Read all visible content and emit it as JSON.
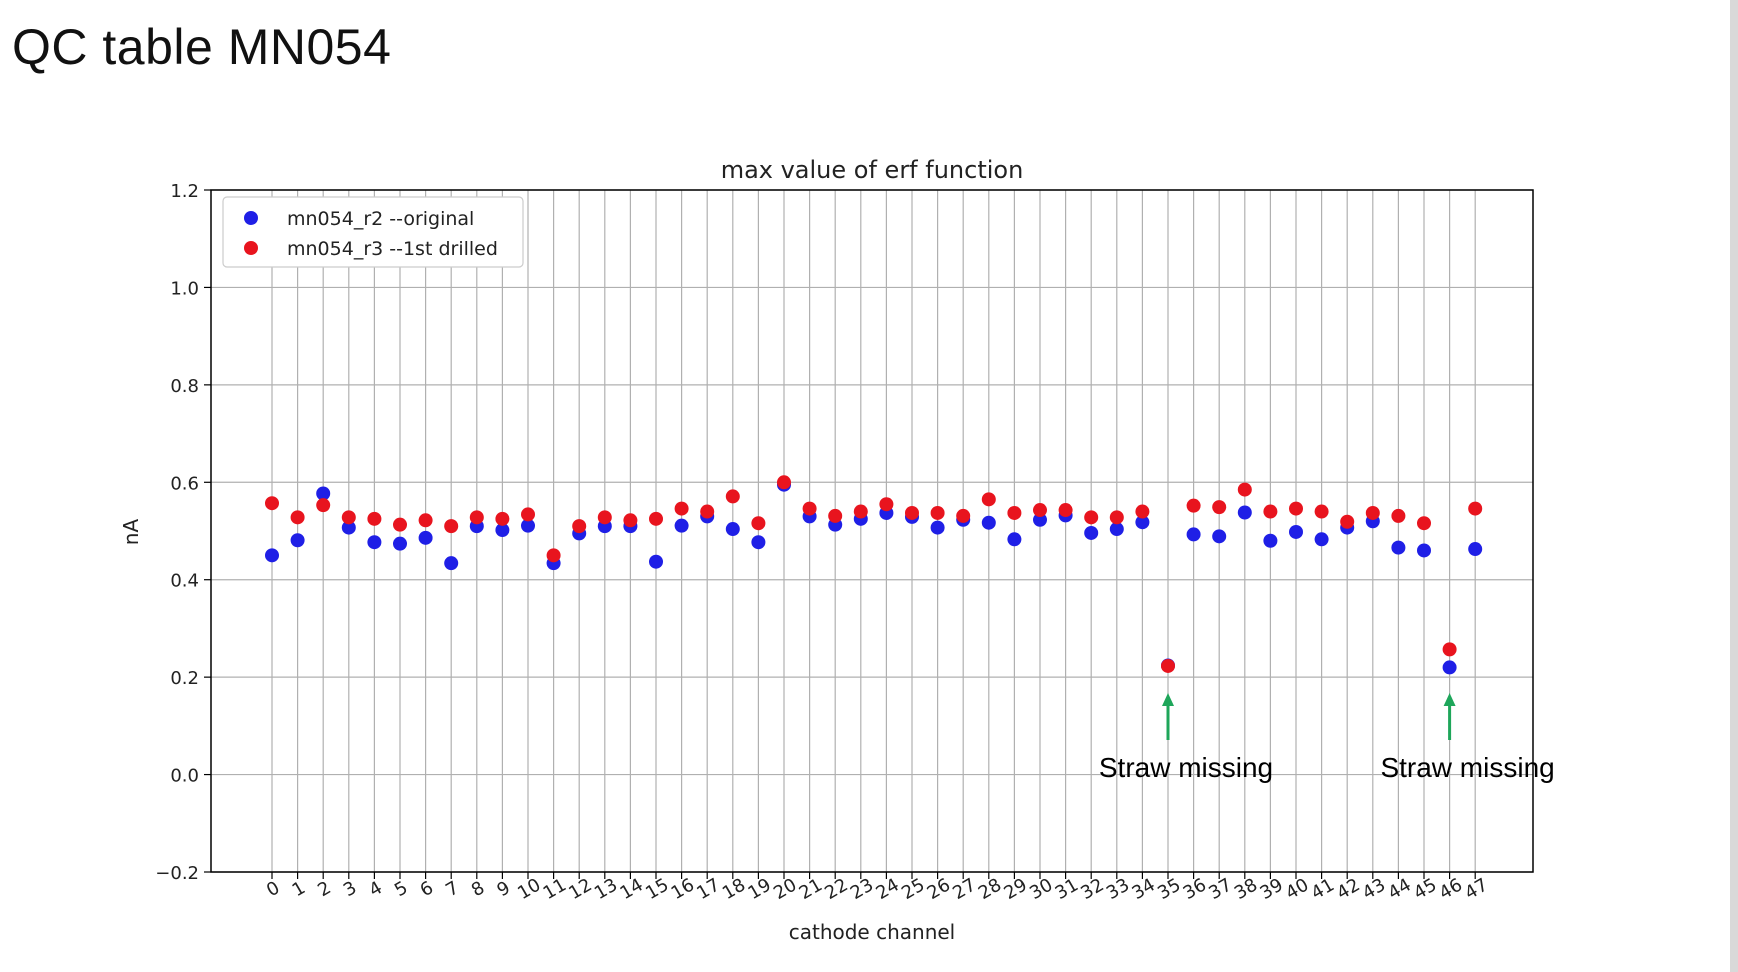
{
  "slide": {
    "title": "QC table MN054"
  },
  "chart_data": {
    "type": "scatter",
    "title": "max value of erf function",
    "xlabel": "cathode channel",
    "ylabel": "nA",
    "ylim": [
      -0.2,
      1.2
    ],
    "yticks": [
      -0.2,
      0.0,
      0.2,
      0.4,
      0.6,
      0.8,
      1.0,
      1.2
    ],
    "ytick_labels": [
      "−0.2",
      "0.0",
      "0.2",
      "0.4",
      "0.6",
      "0.8",
      "1.0",
      "1.2"
    ],
    "x": [
      0,
      1,
      2,
      3,
      4,
      5,
      6,
      7,
      8,
      9,
      10,
      11,
      12,
      13,
      14,
      15,
      16,
      17,
      18,
      19,
      20,
      21,
      22,
      23,
      24,
      25,
      26,
      27,
      28,
      29,
      30,
      31,
      32,
      33,
      34,
      35,
      36,
      37,
      38,
      39,
      40,
      41,
      42,
      43,
      44,
      45,
      46,
      47
    ],
    "grid": true,
    "legend_position": "upper-left",
    "series": [
      {
        "name": "mn054_r2 --original",
        "color": "#1f1fe6",
        "values": [
          0.45,
          0.481,
          0.577,
          0.507,
          0.477,
          0.474,
          0.486,
          0.434,
          0.51,
          0.502,
          0.511,
          0.434,
          0.495,
          0.51,
          0.51,
          0.437,
          0.511,
          0.53,
          0.504,
          0.477,
          0.595,
          0.53,
          0.513,
          0.525,
          0.537,
          0.529,
          0.507,
          0.523,
          0.517,
          0.483,
          0.523,
          0.532,
          0.496,
          0.504,
          0.518,
          0.224,
          0.493,
          0.489,
          0.538,
          0.48,
          0.498,
          0.483,
          0.507,
          0.52,
          0.466,
          0.46,
          0.22,
          0.463
        ]
      },
      {
        "name": "mn054_r3 --1st drilled",
        "color": "#e8141e",
        "values": [
          0.557,
          0.528,
          0.553,
          0.528,
          0.525,
          0.513,
          0.522,
          0.51,
          0.528,
          0.525,
          0.534,
          0.45,
          0.51,
          0.528,
          0.522,
          0.525,
          0.546,
          0.54,
          0.571,
          0.516,
          0.6,
          0.546,
          0.531,
          0.54,
          0.555,
          0.537,
          0.537,
          0.531,
          0.565,
          0.537,
          0.543,
          0.543,
          0.528,
          0.528,
          0.54,
          0.223,
          0.552,
          0.549,
          0.585,
          0.54,
          0.546,
          0.54,
          0.519,
          0.537,
          0.531,
          0.516,
          0.257,
          0.546
        ]
      }
    ],
    "annotations": [
      {
        "text": "Straw missing",
        "x": 35,
        "color": "#1ea65a"
      },
      {
        "text": "Straw missing",
        "x": 46,
        "color": "#1ea65a"
      }
    ]
  }
}
